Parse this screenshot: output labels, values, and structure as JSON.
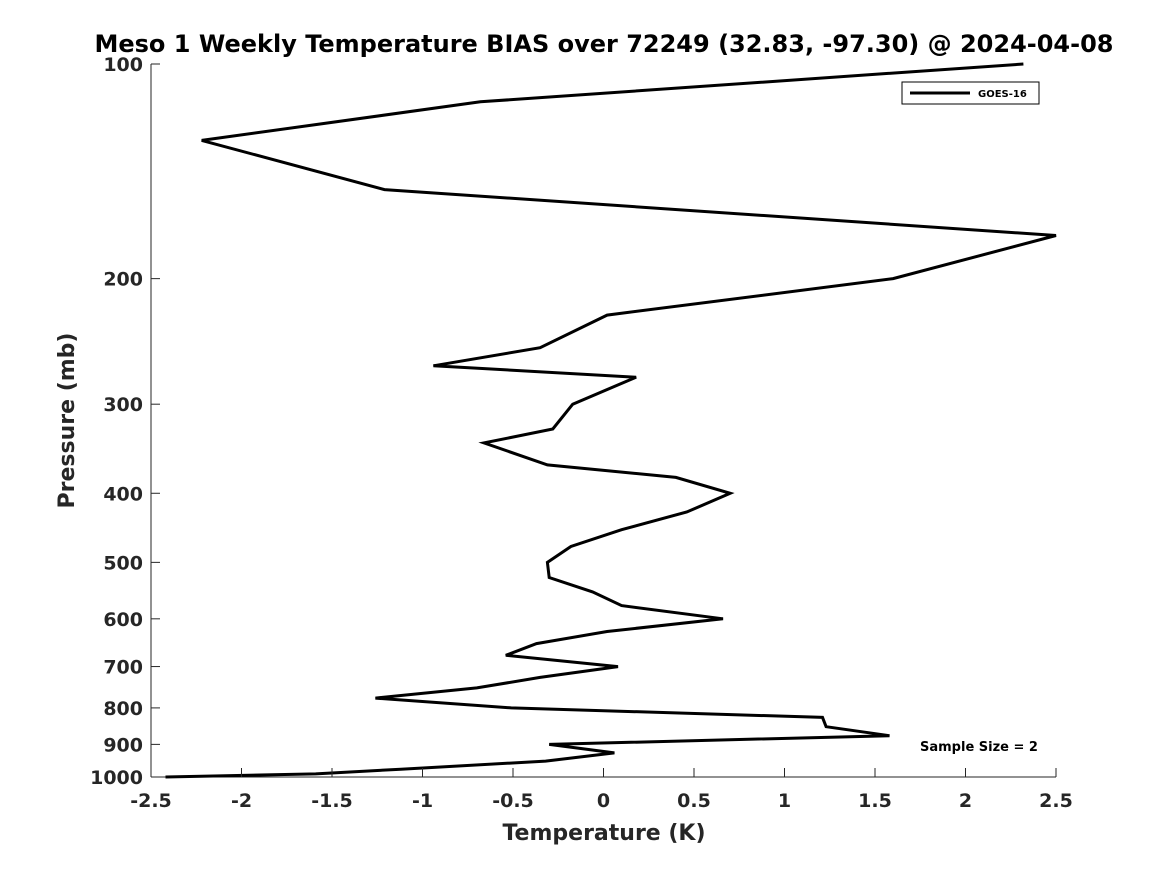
{
  "chart_data": {
    "type": "line",
    "title": "Meso 1 Weekly Temperature BIAS over 72249 (32.83, -97.30) @ 2024-04-08",
    "xlabel": "Temperature (K)",
    "ylabel": "Pressure (mb)",
    "xlim": [
      -2.5,
      2.5
    ],
    "ylim": [
      100,
      1000
    ],
    "yscale": "log",
    "y_reversed": true,
    "xticks": [
      "-2.5",
      "-2",
      "-1.5",
      "-1",
      "-0.5",
      "0",
      "0.5",
      "1",
      "1.5",
      "2",
      "2.5"
    ],
    "xtick_values": [
      -2.5,
      -2,
      -1.5,
      -1,
      -0.5,
      0,
      0.5,
      1,
      1.5,
      2,
      2.5
    ],
    "yticks": [
      "100",
      "200",
      "300",
      "400",
      "500",
      "600",
      "700",
      "800",
      "900",
      "1000"
    ],
    "ytick_values": [
      100,
      200,
      300,
      400,
      500,
      600,
      700,
      800,
      900,
      1000
    ],
    "grid": false,
    "legend_position": "top-right",
    "annotation": "Sample Size = 2",
    "series": [
      {
        "name": "GOES-16",
        "color": "#000000",
        "points": [
          [
            2.32,
            100
          ],
          [
            -0.68,
            113
          ],
          [
            -2.22,
            128
          ],
          [
            -1.21,
            150
          ],
          [
            2.5,
            174
          ],
          [
            1.6,
            200
          ],
          [
            0.02,
            225
          ],
          [
            -0.35,
            250
          ],
          [
            -0.94,
            265
          ],
          [
            0.18,
            275
          ],
          [
            -0.17,
            300
          ],
          [
            -0.28,
            325
          ],
          [
            -0.66,
            340
          ],
          [
            -0.31,
            365
          ],
          [
            0.4,
            380
          ],
          [
            0.7,
            400
          ],
          [
            0.46,
            425
          ],
          [
            0.1,
            450
          ],
          [
            -0.18,
            475
          ],
          [
            -0.31,
            500
          ],
          [
            -0.3,
            525
          ],
          [
            -0.06,
            550
          ],
          [
            0.1,
            575
          ],
          [
            0.66,
            600
          ],
          [
            0.02,
            625
          ],
          [
            -0.37,
            650
          ],
          [
            -0.54,
            675
          ],
          [
            0.08,
            700
          ],
          [
            -0.35,
            725
          ],
          [
            -0.7,
            750
          ],
          [
            -1.26,
            775
          ],
          [
            -0.51,
            800
          ],
          [
            1.21,
            825
          ],
          [
            1.23,
            850
          ],
          [
            1.58,
            875
          ],
          [
            -0.3,
            900
          ],
          [
            0.06,
            925
          ],
          [
            -0.32,
            950
          ],
          [
            -1.12,
            975
          ],
          [
            -1.59,
            990
          ],
          [
            -2.42,
            1000
          ]
        ]
      }
    ]
  }
}
